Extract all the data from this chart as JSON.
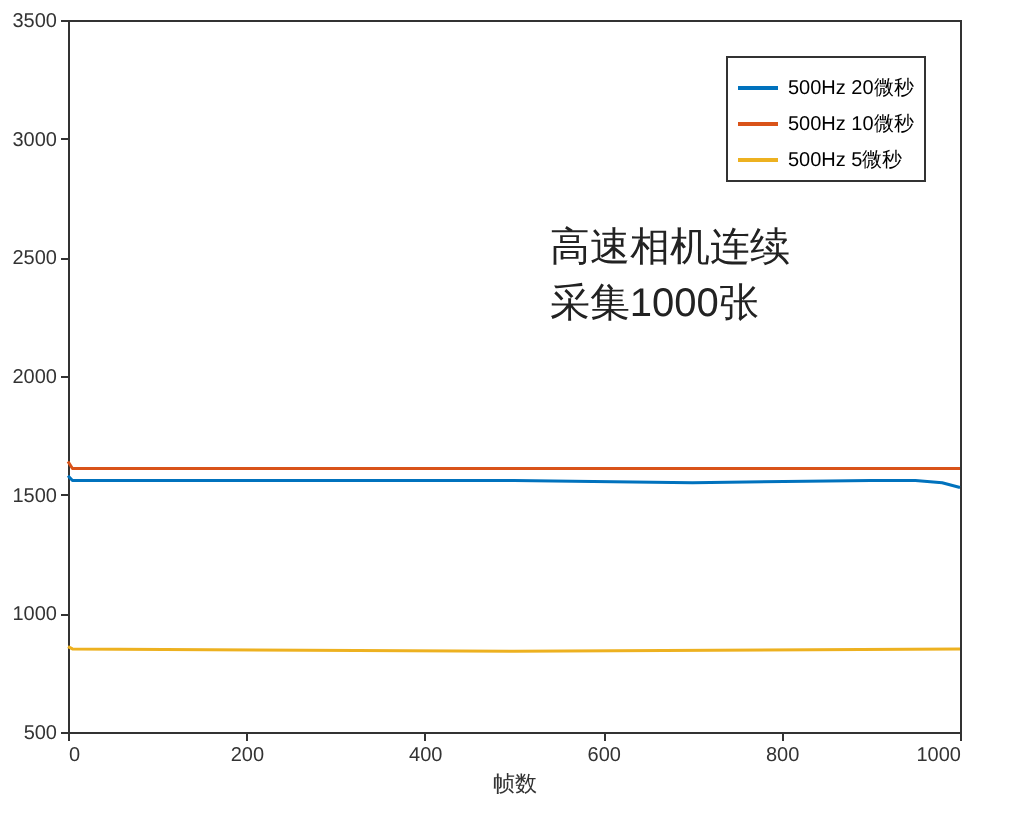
{
  "chart_data": {
    "type": "line",
    "xlabel": "帧数",
    "xlim": [
      0,
      1000
    ],
    "xticks": [
      0,
      200,
      400,
      600,
      800,
      1000
    ],
    "ylim": [
      500,
      3500
    ],
    "yticks": [
      500,
      1000,
      1500,
      2000,
      2500,
      3000,
      3500
    ],
    "series": [
      {
        "name": "500Hz 20微秒",
        "color": "#0072bd",
        "x": [
          0,
          5,
          100,
          300,
          500,
          700,
          900,
          950,
          980,
          1000
        ],
        "values": [
          1580,
          1560,
          1560,
          1560,
          1560,
          1550,
          1560,
          1560,
          1550,
          1530
        ]
      },
      {
        "name": "500Hz 10微秒",
        "color": "#d95319",
        "x": [
          0,
          5,
          500,
          1000
        ],
        "values": [
          1640,
          1610,
          1610,
          1610
        ]
      },
      {
        "name": "500Hz 5微秒",
        "color": "#edb120",
        "x": [
          0,
          5,
          500,
          1000
        ],
        "values": [
          860,
          850,
          840,
          850
        ]
      }
    ],
    "annotations": [
      "高速相机连续",
      "采集1000张"
    ],
    "legend": "top right",
    "grid": false,
    "marker": "none",
    "line_style": "solid"
  }
}
